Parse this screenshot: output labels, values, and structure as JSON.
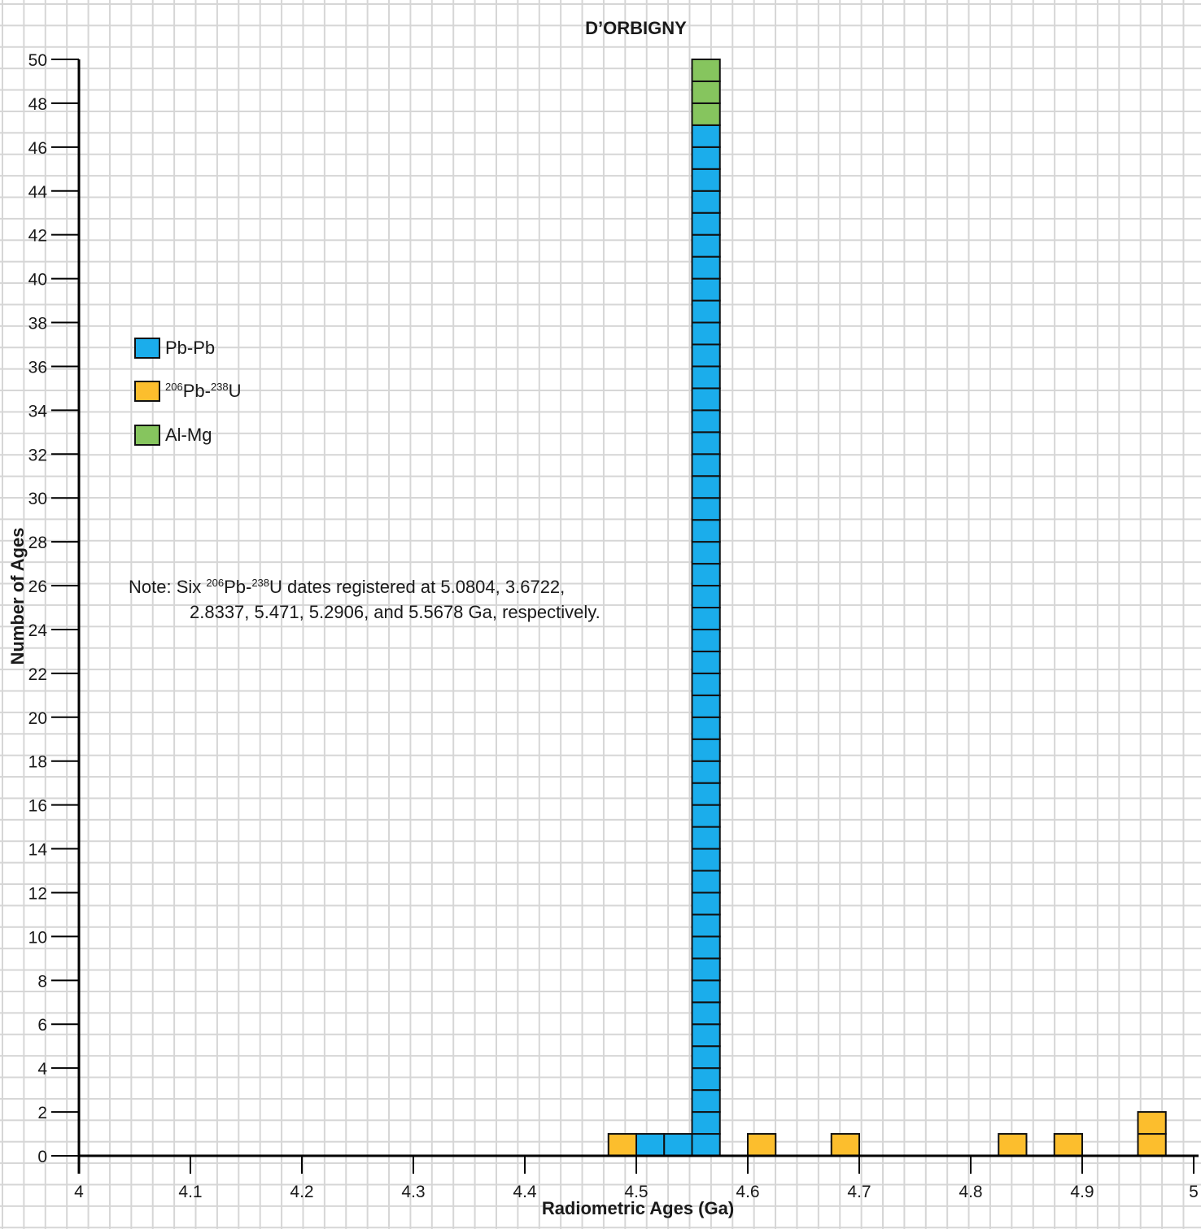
{
  "chart_data": {
    "type": "bar",
    "title": "D’ORBIGNY",
    "xlabel": "Radiometric Ages (Ga)",
    "ylabel": "Number of Ages",
    "xlim": [
      4,
      5
    ],
    "ylim": [
      0,
      50
    ],
    "x_ticks": [
      "4",
      "4.1",
      "4.2",
      "4.3",
      "4.4",
      "4.5",
      "4.6",
      "4.7",
      "4.8",
      "4.9",
      "5"
    ],
    "y_ticks": [
      "0",
      "2",
      "4",
      "6",
      "8",
      "10",
      "12",
      "14",
      "16",
      "18",
      "20",
      "22",
      "24",
      "26",
      "28",
      "30",
      "32",
      "34",
      "36",
      "38",
      "40",
      "42",
      "44",
      "46",
      "48",
      "50"
    ],
    "bin_width": 0.025,
    "stacked": true,
    "grid": true,
    "legend_position": "upper-left",
    "series": [
      {
        "name": "Pb-Pb",
        "color": "#1badeb",
        "bins": [
          {
            "x": 4.5125,
            "count": 1
          },
          {
            "x": 4.5375,
            "count": 1
          },
          {
            "x": 4.5625,
            "count": 47
          }
        ]
      },
      {
        "name_pre": "206",
        "name_mid": "Pb-",
        "name_sup": "238",
        "name_post": "U",
        "color": "#fcbe2d",
        "bins": [
          {
            "x": 4.4875,
            "count": 1
          },
          {
            "x": 4.6125,
            "count": 1
          },
          {
            "x": 4.6875,
            "count": 1
          },
          {
            "x": 4.8375,
            "count": 1
          },
          {
            "x": 4.8875,
            "count": 1
          },
          {
            "x": 4.9625,
            "count": 2
          }
        ]
      },
      {
        "name": "Al-Mg",
        "color": "#86c55e",
        "bins": [
          {
            "x": 4.5625,
            "count": 3
          }
        ]
      }
    ],
    "note": {
      "prefix": "Note: Six ",
      "sup1": "206",
      "mid1": "Pb-",
      "sup2": "238",
      "rest": "U dates registered at 5.0804, 3.6722,",
      "line2": "2.8337, 5.471, 5.2906, and 5.5678 Ga, respectively."
    }
  }
}
